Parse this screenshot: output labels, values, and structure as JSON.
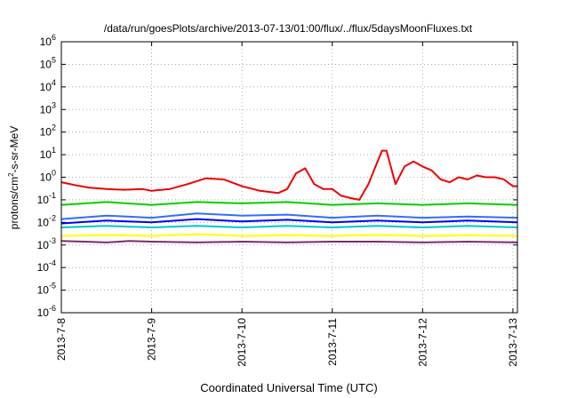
{
  "chart_data": {
    "type": "line",
    "title": "/data/run/goesPlots/archive/2013-07-13/01:00/flux/../flux/5daysMoonFluxes.txt",
    "xlabel": "Coordinated Universal Time (UTC)",
    "ylabel": {
      "base": "protons/cm",
      "sup": "2",
      "rest": "-s-sr-MeV"
    },
    "x_ticks": [
      "2013-7-8",
      "2013-7-9",
      "2013-7-10",
      "2013-7-11",
      "2013-7-12",
      "2013-7-13"
    ],
    "xlim": [
      0,
      5.05
    ],
    "ylim_exp": [
      -6,
      6
    ],
    "y_scale": "log",
    "y_ticks": [
      {
        "exp": -6,
        "base": "10",
        "sup": "-6"
      },
      {
        "exp": -5,
        "base": "10",
        "sup": "-5"
      },
      {
        "exp": -4,
        "base": "10",
        "sup": "-4"
      },
      {
        "exp": -3,
        "base": "10",
        "sup": "-3"
      },
      {
        "exp": -2,
        "base": "10",
        "sup": "-2"
      },
      {
        "exp": -1,
        "base": "10",
        "sup": "-1"
      },
      {
        "exp": 0,
        "base": "10",
        "sup": "0"
      },
      {
        "exp": 1,
        "base": "10",
        "sup": "1"
      },
      {
        "exp": 2,
        "base": "10",
        "sup": "2"
      },
      {
        "exp": 3,
        "base": "10",
        "sup": "3"
      },
      {
        "exp": 4,
        "base": "10",
        "sup": "4"
      },
      {
        "exp": 5,
        "base": "10",
        "sup": "5"
      },
      {
        "exp": 6,
        "base": "10",
        "sup": "6"
      }
    ],
    "grid": true,
    "series": [
      {
        "color": "#ffff00",
        "points": [
          [
            0,
            0.0025
          ],
          [
            0.5,
            0.0028
          ],
          [
            1,
            0.0025
          ],
          [
            1.5,
            0.003
          ],
          [
            2,
            0.0025
          ],
          [
            2.5,
            0.0027
          ],
          [
            3,
            0.0025
          ],
          [
            3.5,
            0.0028
          ],
          [
            4,
            0.0025
          ],
          [
            4.5,
            0.0027
          ],
          [
            5.05,
            0.0025
          ]
        ]
      },
      {
        "color": "#7f2a6e",
        "points": [
          [
            0,
            0.0015
          ],
          [
            0.25,
            0.0014
          ],
          [
            0.5,
            0.0013
          ],
          [
            0.75,
            0.0015
          ],
          [
            1,
            0.0014
          ],
          [
            1.5,
            0.0013
          ],
          [
            2,
            0.0014
          ],
          [
            2.5,
            0.0013
          ],
          [
            3,
            0.0014
          ],
          [
            3.5,
            0.0014
          ],
          [
            4,
            0.0013
          ],
          [
            4.5,
            0.0014
          ],
          [
            5.05,
            0.0013
          ]
        ]
      },
      {
        "color": "#00c8c8",
        "points": [
          [
            0,
            0.006
          ],
          [
            0.5,
            0.007
          ],
          [
            1,
            0.006
          ],
          [
            1.5,
            0.007
          ],
          [
            2,
            0.006
          ],
          [
            2.5,
            0.007
          ],
          [
            3,
            0.006
          ],
          [
            3.5,
            0.007
          ],
          [
            4,
            0.006
          ],
          [
            4.5,
            0.007
          ],
          [
            5.05,
            0.006
          ]
        ]
      },
      {
        "color": "#0000ff",
        "points": [
          [
            0,
            0.009
          ],
          [
            0.5,
            0.012
          ],
          [
            1,
            0.01
          ],
          [
            1.5,
            0.014
          ],
          [
            2,
            0.011
          ],
          [
            2.5,
            0.013
          ],
          [
            3,
            0.01
          ],
          [
            3.5,
            0.012
          ],
          [
            4,
            0.01
          ],
          [
            4.5,
            0.012
          ],
          [
            5.05,
            0.01
          ]
        ]
      },
      {
        "color": "#2f6fff",
        "points": [
          [
            0,
            0.014
          ],
          [
            0.5,
            0.02
          ],
          [
            1,
            0.016
          ],
          [
            1.5,
            0.025
          ],
          [
            2,
            0.02
          ],
          [
            2.5,
            0.022
          ],
          [
            3,
            0.016
          ],
          [
            3.5,
            0.02
          ],
          [
            4,
            0.016
          ],
          [
            4.5,
            0.018
          ],
          [
            5.05,
            0.016
          ]
        ]
      },
      {
        "color": "#00d000",
        "points": [
          [
            0,
            0.06
          ],
          [
            0.5,
            0.08
          ],
          [
            1,
            0.06
          ],
          [
            1.5,
            0.08
          ],
          [
            2,
            0.07
          ],
          [
            2.5,
            0.08
          ],
          [
            3,
            0.06
          ],
          [
            3.5,
            0.07
          ],
          [
            4,
            0.06
          ],
          [
            4.5,
            0.07
          ],
          [
            5.05,
            0.06
          ]
        ]
      },
      {
        "color": "#ee0000",
        "points": [
          [
            0,
            0.6
          ],
          [
            0.15,
            0.45
          ],
          [
            0.3,
            0.35
          ],
          [
            0.5,
            0.3
          ],
          [
            0.7,
            0.28
          ],
          [
            0.9,
            0.3
          ],
          [
            1.0,
            0.25
          ],
          [
            1.2,
            0.3
          ],
          [
            1.4,
            0.5
          ],
          [
            1.6,
            0.9
          ],
          [
            1.8,
            0.8
          ],
          [
            2.0,
            0.4
          ],
          [
            2.2,
            0.25
          ],
          [
            2.4,
            0.2
          ],
          [
            2.5,
            0.3
          ],
          [
            2.6,
            1.5
          ],
          [
            2.7,
            2.5
          ],
          [
            2.8,
            0.5
          ],
          [
            2.9,
            0.3
          ],
          [
            3.0,
            0.3
          ],
          [
            3.1,
            0.15
          ],
          [
            3.2,
            0.12
          ],
          [
            3.3,
            0.1
          ],
          [
            3.4,
            0.5
          ],
          [
            3.55,
            15
          ],
          [
            3.6,
            15
          ],
          [
            3.7,
            0.5
          ],
          [
            3.8,
            3
          ],
          [
            3.9,
            5
          ],
          [
            4.0,
            3
          ],
          [
            4.1,
            2
          ],
          [
            4.2,
            0.8
          ],
          [
            4.3,
            0.6
          ],
          [
            4.4,
            1.0
          ],
          [
            4.5,
            0.8
          ],
          [
            4.6,
            1.2
          ],
          [
            4.7,
            1.0
          ],
          [
            4.8,
            1.0
          ],
          [
            4.9,
            0.8
          ],
          [
            5.0,
            0.4
          ],
          [
            5.05,
            0.4
          ]
        ]
      }
    ]
  }
}
